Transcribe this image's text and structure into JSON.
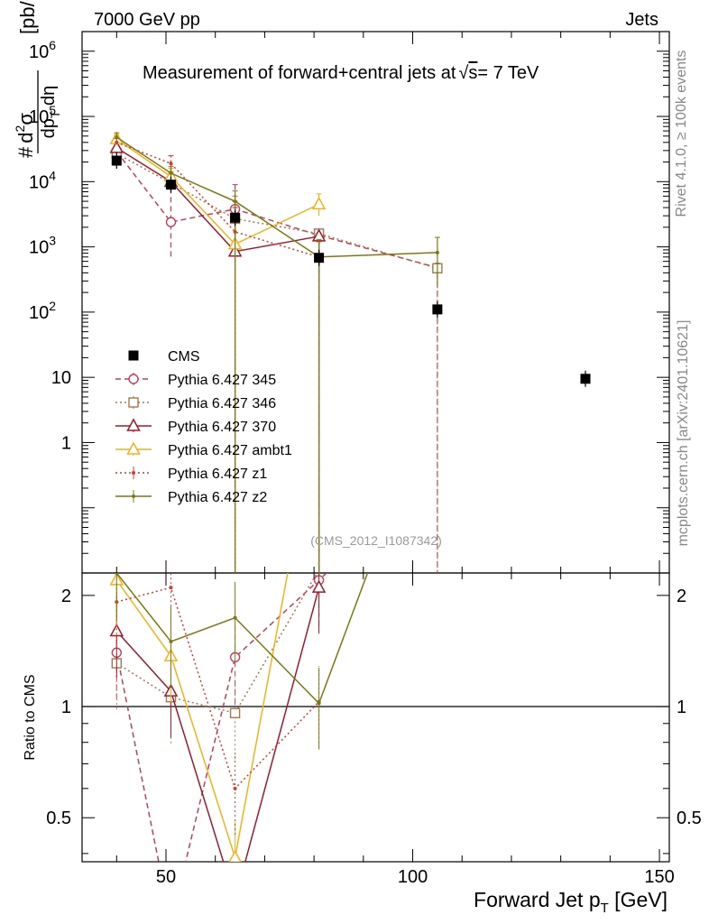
{
  "header": {
    "left": "7000 GeV pp",
    "right": "Jets"
  },
  "side_labels": {
    "rivet": "Rivet 4.1.0, ≥ 100k events",
    "mcplots": "mcplots.cern.ch [arXiv:2401.10621]"
  },
  "chart_data": {
    "type": "scatter",
    "title": "Measurement of forward+central jets at √s = 7 TeV",
    "title_parts": {
      "pre": "Measurement of forward+central jets at",
      "sqrt": "√",
      "s": "s",
      "post": "= 7 TeV"
    },
    "analysis_tag": "(CMS_2012_I1087342)",
    "ylabel": {
      "hash": "#",
      "d2": "d",
      "sup2": "2",
      "sigma": "σ",
      "den": "dp",
      "den_sub": "T",
      "den_eta": " dη",
      "unit": "[pb/GeV]"
    },
    "xlabel": {
      "main": "Forward Jet p",
      "sub": "T",
      "unit": " [GeV]"
    },
    "ratio_ylabel": "Ratio to CMS",
    "xlim": [
      33,
      152
    ],
    "ylim_main": [
      0.01,
      2000000
    ],
    "ylim_ratio": [
      0.38,
      2.3
    ],
    "x_ticks": [
      50,
      100,
      150
    ],
    "x_tick_labels": [
      "50",
      "100",
      "150"
    ],
    "y_ticks_main": [
      1,
      10,
      100,
      1000,
      10000,
      100000,
      1000000
    ],
    "y_tick_labels_main": [
      {
        "base": "1",
        "exp": ""
      },
      {
        "base": "10",
        "exp": ""
      },
      {
        "base": "10",
        "exp": "2"
      },
      {
        "base": "10",
        "exp": "3"
      },
      {
        "base": "10",
        "exp": "4"
      },
      {
        "base": "10",
        "exp": "5"
      },
      {
        "base": "10",
        "exp": "6"
      }
    ],
    "y_ticks_ratio": [
      0.5,
      1,
      2
    ],
    "y_tick_labels_ratio": [
      "0.5",
      "1",
      "2"
    ],
    "data": {
      "name": "CMS",
      "x": [
        40,
        51,
        64,
        81,
        105,
        135
      ],
      "y": [
        21000,
        9000,
        2800,
        680,
        110,
        9.5
      ]
    },
    "series": [
      {
        "name": "Pythia 6.427 345",
        "color": "#bf3f5a",
        "dash": "6,4",
        "marker": "circle",
        "x": [
          40,
          51,
          64,
          81,
          105
        ],
        "y": [
          29000,
          2400,
          3800,
          1500,
          480
        ],
        "err_lo": [
          25000,
          700,
          600,
          0.01,
          0.01
        ],
        "err_hi": [
          33000,
          8000,
          9000,
          1700,
          560
        ],
        "ratio": [
          1.4,
          0.26,
          1.36,
          2.2,
          4.4
        ]
      },
      {
        "name": "Pythia 6.427 346",
        "color": "#a8774a",
        "dash": "2,3",
        "marker": "square",
        "x": [
          40,
          51,
          64,
          81,
          105
        ],
        "y": [
          27000,
          9500,
          2700,
          1600,
          470
        ],
        "err_lo": [
          23000,
          7000,
          0.01,
          0.01,
          0.01
        ],
        "err_hi": [
          31000,
          13000,
          6000,
          1800,
          550
        ],
        "ratio": [
          1.31,
          1.06,
          0.96,
          2.35,
          4.3
        ]
      },
      {
        "name": "Pythia 6.427 370",
        "color": "#9b1b2c",
        "dash": "",
        "marker": "triangle",
        "x": [
          40,
          51,
          64,
          81
        ],
        "y": [
          33000,
          10000,
          850,
          1450
        ],
        "err_lo": [
          28000,
          8000,
          0.01,
          0.01
        ],
        "err_hi": [
          38000,
          14000,
          4000,
          1600
        ],
        "ratio": [
          1.6,
          1.1,
          0.3,
          2.1
        ]
      },
      {
        "name": "Pythia 6.427 ambt1",
        "color": "#f1b21c",
        "dash": "",
        "marker": "triangle",
        "x": [
          40,
          51,
          64,
          81
        ],
        "y": [
          45000,
          12000,
          1100,
          4500
        ],
        "err_lo": [
          39000,
          9000,
          0.01,
          3000
        ],
        "err_hi": [
          52000,
          16000,
          5000,
          6500
        ],
        "ratio": [
          2.2,
          1.37,
          0.39,
          6.6
        ]
      },
      {
        "name": "Pythia 6.427 z1",
        "color": "#d43a2e",
        "dash": "2,3",
        "marker": "dot",
        "x": [
          40,
          51,
          64,
          81
        ],
        "y": [
          40000,
          19000,
          1700,
          700
        ],
        "err_lo": [
          35000,
          15000,
          0.01,
          0.01
        ],
        "err_hi": [
          46000,
          25000,
          5000,
          1200
        ],
        "ratio": [
          1.92,
          2.1,
          0.6,
          1.03
        ]
      },
      {
        "name": "Pythia 6.427 z2",
        "color": "#7a7a12",
        "dash": "",
        "marker": "dot",
        "x": [
          40,
          51,
          64,
          81,
          105
        ],
        "y": [
          48000,
          13500,
          5000,
          700,
          820
        ],
        "err_lo": [
          41000,
          10000,
          0.01,
          0.01,
          250
        ],
        "err_hi": [
          56000,
          17000,
          7200,
          1300,
          1400
        ],
        "ratio": [
          2.3,
          1.5,
          1.74,
          1.02,
          7.4
        ]
      }
    ]
  }
}
